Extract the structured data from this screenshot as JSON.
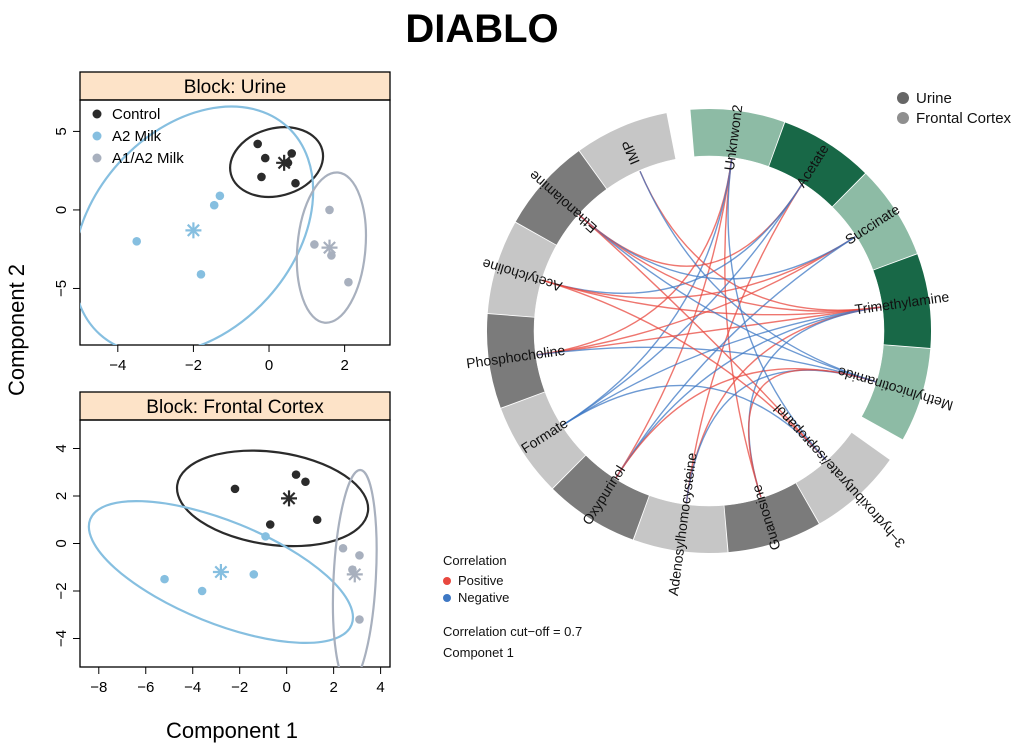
{
  "title": "DIABLO",
  "chart_data": [
    {
      "type": "scatter",
      "panel_title": "Block: Urine",
      "xlim": [
        -5,
        3.2
      ],
      "ylim": [
        -8.6,
        7
      ],
      "xticks": [
        -4,
        -2,
        0,
        2
      ],
      "xtick_labels": [
        "−4",
        "−2",
        "0",
        "2"
      ],
      "yticks": [
        5,
        0,
        -5
      ],
      "ytick_labels": [
        "5",
        "0",
        "−5"
      ],
      "legend": {
        "position": "top-left",
        "entries": [
          {
            "label": "Control",
            "color": "#2b2b2b"
          },
          {
            "label": "A2 Milk",
            "color": "#86bfe0"
          },
          {
            "label": "A1/A2 Milk",
            "color": "#a8b0be"
          }
        ]
      },
      "series": [
        {
          "color": "#2b2b2b",
          "points": [
            [
              -0.3,
              4.2
            ],
            [
              0.6,
              3.6
            ],
            [
              0.5,
              3.0
            ],
            [
              -0.1,
              3.3
            ],
            [
              -0.2,
              2.1
            ],
            [
              0.7,
              1.7
            ]
          ],
          "centroid": [
            0.4,
            3.0
          ],
          "ellipse": {
            "cx": 0.2,
            "cy": 3.05,
            "rx": 1.25,
            "ry": 2.15,
            "angle": -15
          }
        },
        {
          "color": "#86bfe0",
          "points": [
            [
              -1.3,
              0.9
            ],
            [
              -1.45,
              0.3
            ],
            [
              -3.5,
              -2.0
            ],
            [
              -1.8,
              -4.1
            ]
          ],
          "centroid": [
            -2.0,
            -1.3
          ],
          "ellipse": {
            "cx": -2.0,
            "cy": -1.3,
            "rx": 3.7,
            "ry": 6.4,
            "angle": -48
          }
        },
        {
          "color": "#a8b0be",
          "points": [
            [
              1.6,
              0.0
            ],
            [
              1.2,
              -2.2
            ],
            [
              1.65,
              -2.9
            ],
            [
              2.1,
              -4.6
            ]
          ],
          "centroid": [
            1.6,
            -2.4
          ],
          "ellipse": {
            "cx": 1.65,
            "cy": -2.4,
            "rx": 0.9,
            "ry": 4.8,
            "angle": 5
          }
        }
      ]
    },
    {
      "type": "scatter",
      "panel_title": "Block: Frontal Cortex",
      "xlim": [
        -8.8,
        4.4
      ],
      "ylim": [
        -5.2,
        5.2
      ],
      "xticks": [
        -8,
        -6,
        -4,
        -2,
        0,
        2,
        4
      ],
      "xtick_labels": [
        "−8",
        "−6",
        "−4",
        "−2",
        "0",
        "2",
        "4"
      ],
      "yticks": [
        4,
        2,
        0,
        -2,
        -4
      ],
      "ytick_labels": [
        "4",
        "2",
        "0",
        "−2",
        "−4"
      ],
      "series": [
        {
          "color": "#2b2b2b",
          "points": [
            [
              -2.2,
              2.3
            ],
            [
              0.4,
              2.9
            ],
            [
              0.8,
              2.6
            ],
            [
              -0.7,
              0.8
            ],
            [
              1.3,
              1.0
            ]
          ],
          "centroid": [
            0.1,
            1.9
          ],
          "ellipse": {
            "cx": -0.6,
            "cy": 1.9,
            "rx": 4.1,
            "ry": 1.95,
            "angle": 8
          }
        },
        {
          "color": "#86bfe0",
          "points": [
            [
              -0.9,
              0.3
            ],
            [
              -5.2,
              -1.5
            ],
            [
              -3.6,
              -2.0
            ],
            [
              -1.4,
              -1.3
            ]
          ],
          "centroid": [
            -2.8,
            -1.2
          ],
          "ellipse": {
            "cx": -2.8,
            "cy": -1.2,
            "rx": 6.0,
            "ry": 2.15,
            "angle": 22
          }
        },
        {
          "color": "#a8b0be",
          "points": [
            [
              2.4,
              -0.2
            ],
            [
              3.1,
              -0.5
            ],
            [
              2.8,
              -1.1
            ],
            [
              3.1,
              -3.2
            ]
          ],
          "centroid": [
            2.9,
            -1.3
          ],
          "ellipse": {
            "cx": 2.9,
            "cy": -1.4,
            "rx": 0.9,
            "ry": 4.5,
            "angle": 3
          }
        }
      ]
    },
    {
      "type": "chord",
      "legend": {
        "position": "top-right",
        "entries": [
          {
            "label": "Urine",
            "color": "#666666"
          },
          {
            "label": "Frontal Cortex",
            "color": "#8f8f8f"
          }
        ]
      },
      "correlation_legend": {
        "title": "Correlation",
        "entries": [
          {
            "label": "Positive",
            "color": "#e8483f"
          },
          {
            "label": "Negative",
            "color": "#3e78c4"
          }
        ],
        "cutoff_text": "Correlation cut−off = 0.7",
        "component_text": "Componet 1"
      },
      "segments": [
        {
          "label": "Unknwon2",
          "block": "urine",
          "color": "#8dbba5"
        },
        {
          "label": "Acetate",
          "block": "urine",
          "color": "#186847"
        },
        {
          "label": "Succinate",
          "block": "urine",
          "color": "#8dbba5"
        },
        {
          "label": "Trimethylamine",
          "block": "urine",
          "color": "#186847"
        },
        {
          "label": "Methylnicotinamide",
          "block": "urine",
          "color": "#8dbba5"
        },
        {
          "label": "3−hydroxibutyrate/isopropanol",
          "block": "frontal-cortex",
          "color": "#c6c6c6"
        },
        {
          "label": "Guanosine",
          "block": "frontal-cortex",
          "color": "#7b7b7b"
        },
        {
          "label": "Adenosylhomocysteine",
          "block": "frontal-cortex",
          "color": "#c6c6c6"
        },
        {
          "label": "Oxypurinol",
          "block": "frontal-cortex",
          "color": "#7b7b7b"
        },
        {
          "label": "Formate",
          "block": "frontal-cortex",
          "color": "#c6c6c6"
        },
        {
          "label": "Phosphocholine",
          "block": "frontal-cortex",
          "color": "#7b7b7b"
        },
        {
          "label": "Acetylcholine",
          "block": "frontal-cortex",
          "color": "#c6c6c6"
        },
        {
          "label": "Ethanolamine",
          "block": "frontal-cortex",
          "color": "#7b7b7b"
        },
        {
          "label": "IMP",
          "block": "frontal-cortex",
          "color": "#c6c6c6"
        }
      ],
      "links": [
        {
          "from": "Unknwon2",
          "to": "Phosphocholine",
          "sign": "positive"
        },
        {
          "from": "Unknwon2",
          "to": "Oxypurinol",
          "sign": "positive"
        },
        {
          "from": "Unknwon2",
          "to": "Formate",
          "sign": "negative"
        },
        {
          "from": "Unknwon2",
          "to": "Guanosine",
          "sign": "positive"
        },
        {
          "from": "Acetate",
          "to": "Ethanolamine",
          "sign": "positive"
        },
        {
          "from": "Acetate",
          "to": "Acetylcholine",
          "sign": "negative"
        },
        {
          "from": "Acetate",
          "to": "Adenosylhomocysteine",
          "sign": "positive"
        },
        {
          "from": "Acetate",
          "to": "Formate",
          "sign": "negative"
        },
        {
          "from": "Succinate",
          "to": "Phosphocholine",
          "sign": "positive"
        },
        {
          "from": "Succinate",
          "to": "Acetylcholine",
          "sign": "positive"
        },
        {
          "from": "Succinate",
          "to": "Ethanolamine",
          "sign": "negative"
        },
        {
          "from": "Succinate",
          "to": "Oxypurinol",
          "sign": "negative"
        },
        {
          "from": "Trimethylamine",
          "to": "Phosphocholine",
          "sign": "positive"
        },
        {
          "from": "Trimethylamine",
          "to": "Acetylcholine",
          "sign": "positive"
        },
        {
          "from": "Trimethylamine",
          "to": "Ethanolamine",
          "sign": "positive"
        },
        {
          "from": "Trimethylamine",
          "to": "Formate",
          "sign": "negative"
        },
        {
          "from": "Trimethylamine",
          "to": "Oxypurinol",
          "sign": "negative"
        },
        {
          "from": "Trimethylamine",
          "to": "Adenosylhomocysteine",
          "sign": "positive"
        },
        {
          "from": "Trimethylamine",
          "to": "Guanosine",
          "sign": "negative"
        },
        {
          "from": "Trimethylamine",
          "to": "IMP",
          "sign": "positive"
        },
        {
          "from": "Methylnicotinamide",
          "to": "Ethanolamine",
          "sign": "negative"
        },
        {
          "from": "Methylnicotinamide",
          "to": "Phosphocholine",
          "sign": "negative"
        },
        {
          "from": "Methylnicotinamide",
          "to": "Oxypurinol",
          "sign": "positive"
        },
        {
          "from": "Methylnicotinamide",
          "to": "Adenosylhomocysteine",
          "sign": "negative"
        },
        {
          "from": "Methylnicotinamide",
          "to": "Guanosine",
          "sign": "positive"
        },
        {
          "from": "Methylnicotinamide",
          "to": "IMP",
          "sign": "negative"
        },
        {
          "from": "3−hydroxibutyrate/isopropanol",
          "to": "Ethanolamine",
          "sign": "positive"
        },
        {
          "from": "3−hydroxibutyrate/isopropanol",
          "to": "Formate",
          "sign": "negative"
        },
        {
          "from": "3−hydroxibutyrate/isopropanol",
          "to": "Acetylcholine",
          "sign": "positive"
        },
        {
          "from": "3−hydroxibutyrate/isopropanol",
          "to": "Unknwon2",
          "sign": "negative"
        }
      ]
    }
  ],
  "axis_labels": {
    "x": "Component 1",
    "y": "Component 2"
  }
}
